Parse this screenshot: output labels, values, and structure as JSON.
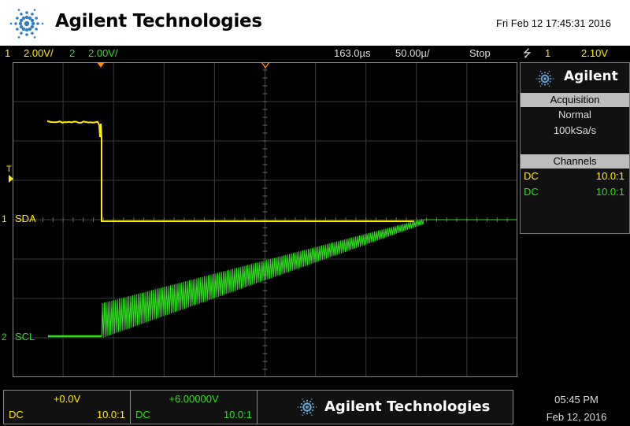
{
  "header": {
    "brand": "Agilent Technologies",
    "datetime": "Fri Feb 12 17:45:31 2016"
  },
  "status_bar": {
    "ch1_num": "1",
    "ch1_scale": "2.00V/",
    "ch2_num": "2",
    "ch2_scale": "2.00V/",
    "time_offset": "163.0µs",
    "time_scale": "50.00µ/",
    "run_state": "Stop",
    "trigger_symbol": "⭍",
    "trigger_channel": "1",
    "trigger_level": "2.10V"
  },
  "display": {
    "ch1_label": "SDA",
    "ch2_label": "SCL",
    "ch1_marker": "1",
    "ch2_marker": "2",
    "trigger_marker": "T",
    "ch1_color": "#ffee00",
    "ch2_color": "#33dd22"
  },
  "side_panel": {
    "brand": "Agilent",
    "acquisition_title": "Acquisition",
    "acquisition_mode": "Normal",
    "sample_rate": "100kSa/s",
    "channels_title": "Channels",
    "channels": [
      {
        "coupling": "DC",
        "probe": "10.0:1"
      },
      {
        "coupling": "DC",
        "probe": "10.0:1"
      }
    ]
  },
  "bottom_bar": {
    "ch1": {
      "offset": "+0.0V",
      "coupling": "DC",
      "probe": "10.0:1"
    },
    "ch2": {
      "offset": "+6.00000V",
      "coupling": "DC",
      "probe": "10.0:1"
    },
    "brand": "Agilent Technologies",
    "time": "05:45 PM",
    "date": "Feb 12, 2016"
  }
}
